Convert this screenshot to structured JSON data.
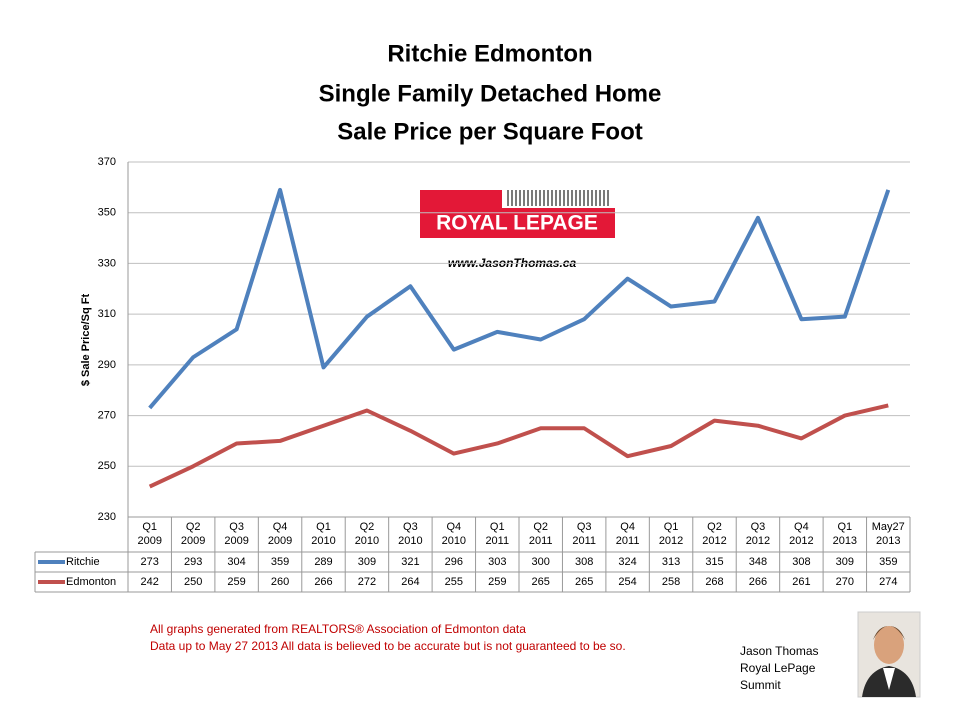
{
  "chart_data": {
    "type": "line",
    "title": [
      "Ritchie Edmonton",
      "Single Family Detached Home",
      "Sale Price per Square Foot"
    ],
    "y_label": "$ Sale Price/Sq Ft",
    "categories": [
      [
        "Q1",
        "2009"
      ],
      [
        "Q2",
        "2009"
      ],
      [
        "Q3",
        "2009"
      ],
      [
        "Q4",
        "2009"
      ],
      [
        "Q1",
        "2010"
      ],
      [
        "Q2",
        "2010"
      ],
      [
        "Q3",
        "2010"
      ],
      [
        "Q4",
        "2010"
      ],
      [
        "Q1",
        "2011"
      ],
      [
        "Q2",
        "2011"
      ],
      [
        "Q3",
        "2011"
      ],
      [
        "Q4",
        "2011"
      ],
      [
        "Q1",
        "2012"
      ],
      [
        "Q2",
        "2012"
      ],
      [
        "Q3",
        "2012"
      ],
      [
        "Q4",
        "2012"
      ],
      [
        "Q1",
        "2013"
      ],
      [
        "May27",
        "2013"
      ]
    ],
    "series": [
      {
        "name": "Ritchie",
        "color": "#4f81bd",
        "values": [
          273,
          293,
          304,
          359,
          289,
          309,
          321,
          296,
          303,
          300,
          308,
          324,
          313,
          315,
          348,
          308,
          309,
          359
        ]
      },
      {
        "name": "Edmonton",
        "color": "#c0504d",
        "values": [
          242,
          250,
          259,
          260,
          266,
          272,
          264,
          255,
          259,
          265,
          265,
          254,
          258,
          268,
          266,
          261,
          270,
          274
        ]
      }
    ],
    "ylim": [
      230,
      370
    ],
    "yticks": [
      230,
      250,
      270,
      290,
      310,
      330,
      350,
      370
    ],
    "grid": true
  },
  "logo": {
    "brand": "ROYAL LEPAGE",
    "url": "www.JasonThomas.ca"
  },
  "footer": {
    "note": [
      "All graphs generated from REALTORS® Association of Edmonton data",
      "Data up to  May 27 2013  All data is believed to be accurate but is not guaranteed to be so."
    ],
    "agent": [
      "Jason Thomas",
      "Royal LePage",
      "Summit"
    ]
  }
}
